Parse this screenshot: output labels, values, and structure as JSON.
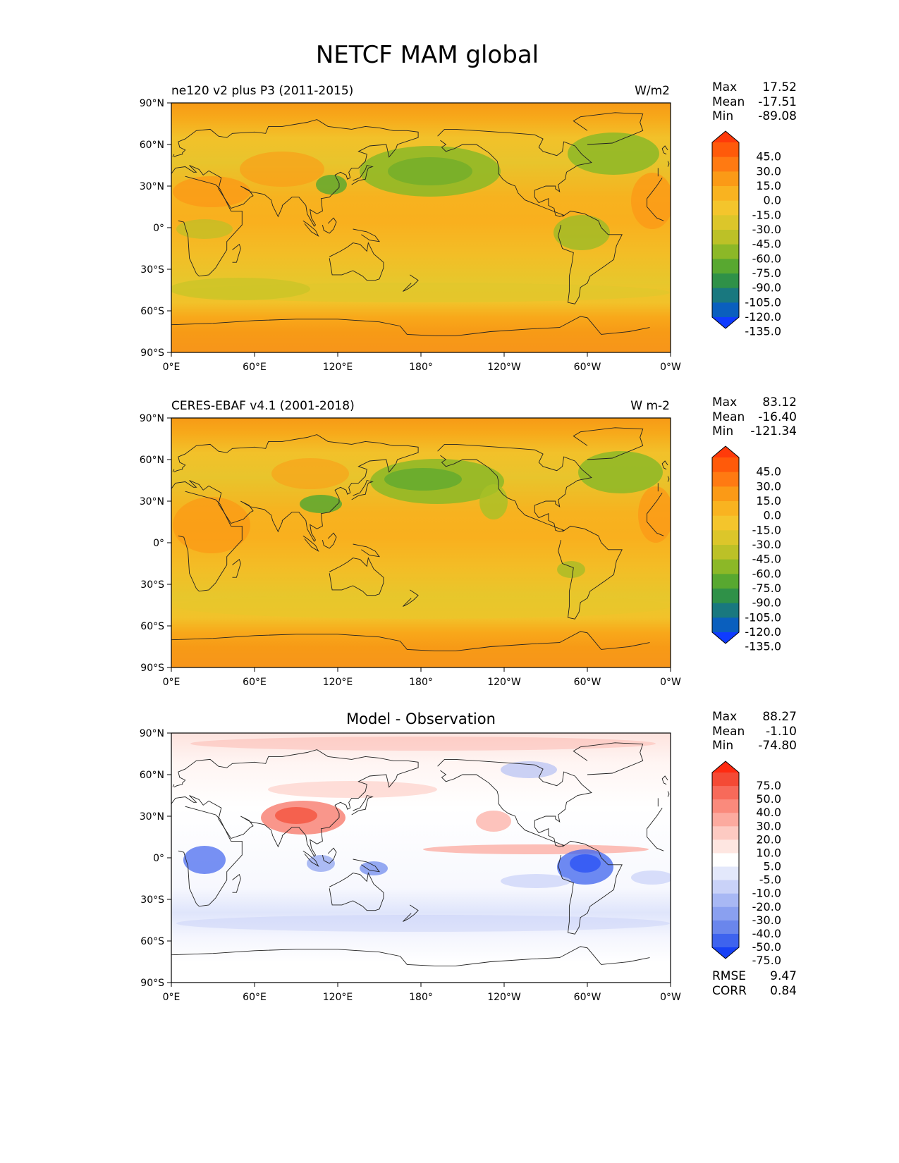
{
  "figure": {
    "title": "NETCF MAM global"
  },
  "panels": [
    {
      "id": "model",
      "left_title": "ne120 v2 plus P3 (2011-2015)",
      "center_title": "",
      "units": "W/m2",
      "stats": [
        {
          "label": "Max",
          "value": "17.52"
        },
        {
          "label": "Mean",
          "value": "-17.51"
        },
        {
          "label": "Min",
          "value": "-89.08"
        }
      ],
      "colorbar": "abs",
      "rmse_corr": null
    },
    {
      "id": "obs",
      "left_title": "CERES-EBAF v4.1 (2001-2018)",
      "center_title": "",
      "units": "W m-2",
      "stats": [
        {
          "label": "Max",
          "value": "83.12"
        },
        {
          "label": "Mean",
          "value": "-16.40"
        },
        {
          "label": "Min",
          "value": "-121.34"
        }
      ],
      "colorbar": "abs",
      "rmse_corr": null
    },
    {
      "id": "diff",
      "left_title": "",
      "center_title": "Model - Observation",
      "units": "",
      "stats": [
        {
          "label": "Max",
          "value": "88.27"
        },
        {
          "label": "Mean",
          "value": "-1.10"
        },
        {
          "label": "Min",
          "value": "-74.80"
        }
      ],
      "colorbar": "diff",
      "rmse_corr": [
        {
          "label": "RMSE",
          "value": "9.47"
        },
        {
          "label": "CORR",
          "value": "0.84"
        }
      ]
    }
  ],
  "axes": {
    "lat_ticks": [
      "90°N",
      "60°N",
      "30°N",
      "0°",
      "30°S",
      "60°S",
      "90°S"
    ],
    "lon_ticks": [
      "0°E",
      "60°E",
      "120°E",
      "180°",
      "120°W",
      "60°W",
      "0°W"
    ]
  },
  "colorbars": {
    "abs": {
      "labels": [
        "45.0",
        "30.0",
        "15.0",
        "0.0",
        "-15.0",
        "-30.0",
        "-45.0",
        "-60.0",
        "-75.0",
        "-90.0",
        "-105.0",
        "-120.0",
        "-135.0"
      ],
      "colors": [
        "#ff3a0a",
        "#ff5a0a",
        "#ff7a12",
        "#fb9a16",
        "#f9b320",
        "#f4c52c",
        "#dcc62a",
        "#bcc127",
        "#8cb827",
        "#58a830",
        "#2f9148",
        "#19787f",
        "#0a5fbe",
        "#0f3bff"
      ]
    },
    "diff": {
      "labels": [
        "75.0",
        "50.0",
        "40.0",
        "30.0",
        "20.0",
        "10.0",
        "5.0",
        "-5.0",
        "-10.0",
        "-20.0",
        "-30.0",
        "-40.0",
        "-50.0",
        "-75.0"
      ],
      "colors": [
        "#ff2a10",
        "#f44a35",
        "#f76a5a",
        "#fa8a7c",
        "#fcaa9f",
        "#fdcac2",
        "#fee6e1",
        "#ffffff",
        "#e3e8fb",
        "#c9d2f8",
        "#a8b8f4",
        "#8aa0f0",
        "#6a86ec",
        "#3e63ee",
        "#1741f5"
      ]
    }
  }
}
